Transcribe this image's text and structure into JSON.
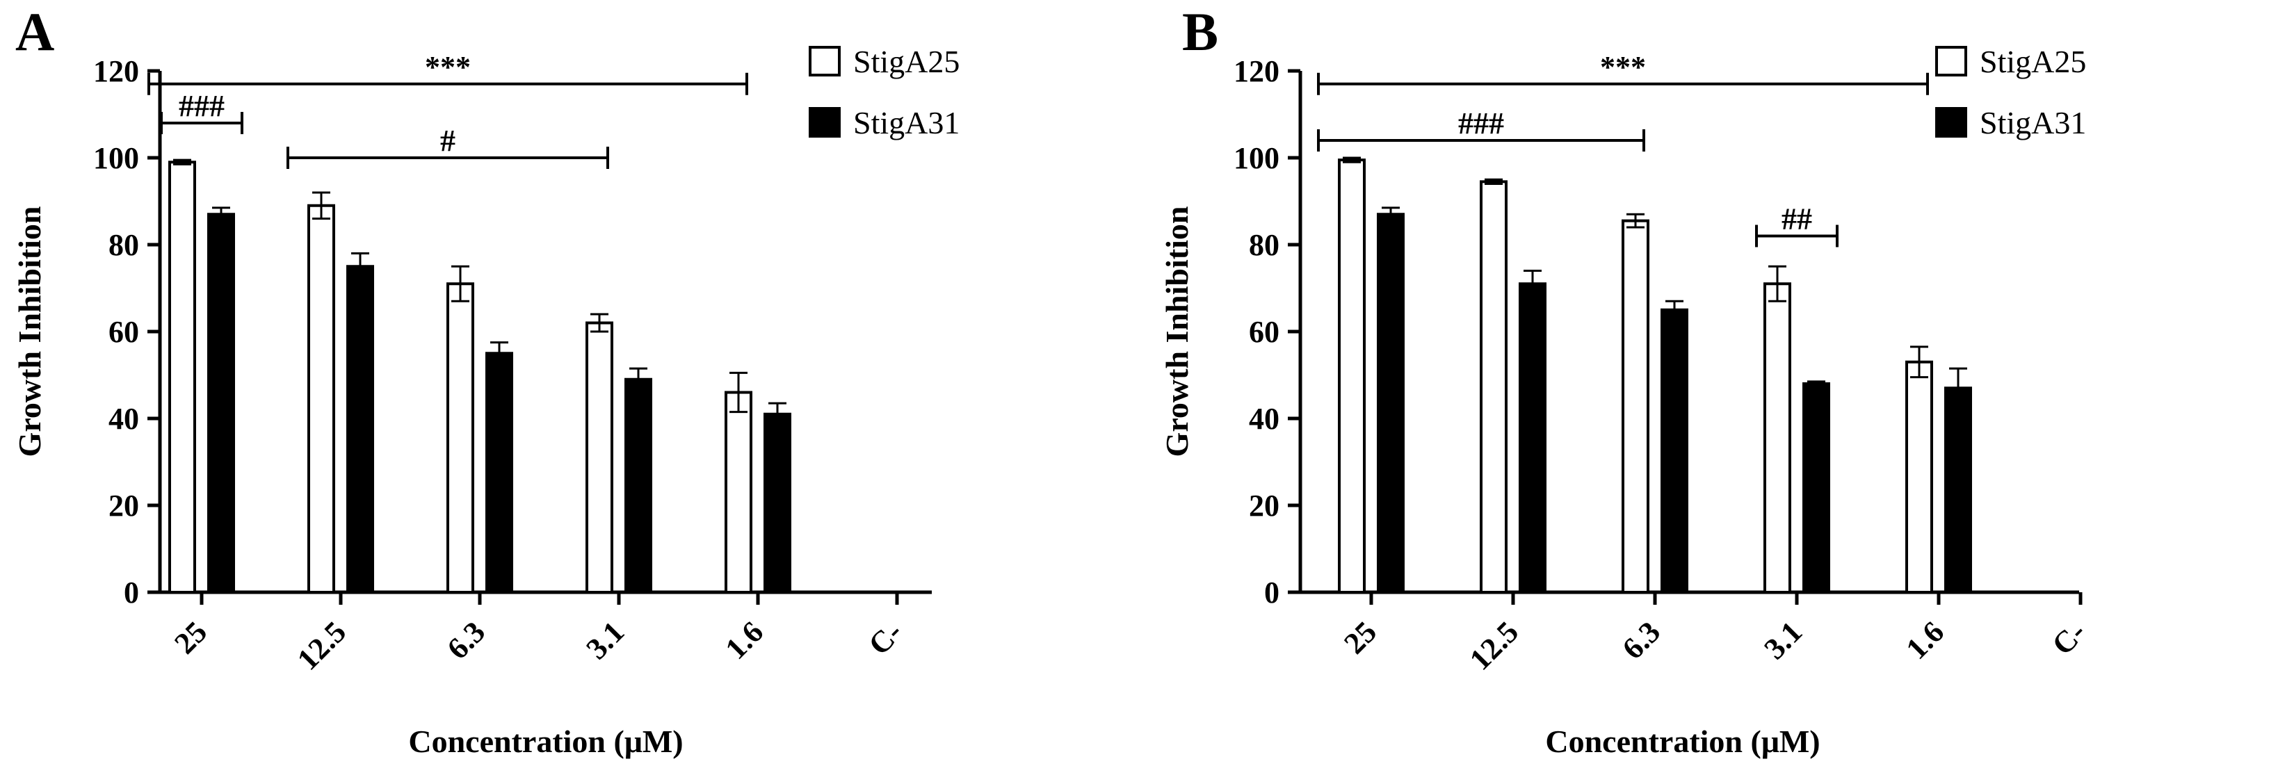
{
  "chart_data": [
    {
      "type": "bar",
      "panel": "A",
      "categories": [
        "25",
        "12.5",
        "6.3",
        "3.1",
        "1.6",
        "C-"
      ],
      "series": [
        {
          "name": "StigA25",
          "values": [
            99,
            89,
            71,
            62,
            46,
            0
          ],
          "errors": [
            0.5,
            3,
            4,
            2,
            4.5,
            0
          ],
          "color": "#ffffff"
        },
        {
          "name": "StigA31",
          "values": [
            87,
            75,
            55,
            49,
            41,
            0
          ],
          "errors": [
            1.5,
            3,
            2.5,
            2.5,
            2.5,
            0
          ],
          "color": "#000000"
        }
      ],
      "xlabel": "Concentration (μM)",
      "ylabel": "Growth Inhibition",
      "ylim": [
        0,
        120
      ],
      "yticks": [
        0,
        20,
        40,
        60,
        80,
        100,
        120
      ],
      "legend": "top-right",
      "annotations": [
        {
          "text": "***",
          "from": "25",
          "to": "1.6",
          "y": 117
        },
        {
          "text": "###",
          "from": "25",
          "to": "25",
          "y": 108
        },
        {
          "text": "#",
          "from": "12.5",
          "to": "3.1",
          "y": 100
        }
      ]
    },
    {
      "type": "bar",
      "panel": "B",
      "categories": [
        "25",
        "12.5",
        "6.3",
        "3.1",
        "1.6",
        "C-"
      ],
      "series": [
        {
          "name": "StigA25",
          "values": [
            99.5,
            94.5,
            85.5,
            71,
            53,
            0
          ],
          "errors": [
            0.5,
            0.5,
            1.5,
            4,
            3.5,
            0
          ],
          "color": "#ffffff"
        },
        {
          "name": "StigA31",
          "values": [
            87,
            71,
            65,
            48,
            47,
            0
          ],
          "errors": [
            1.5,
            3,
            2,
            0.5,
            4.5,
            0
          ],
          "color": "#000000"
        }
      ],
      "xlabel": "Concentration (μM)",
      "ylabel": "Growth Inhibition",
      "ylim": [
        0,
        120
      ],
      "yticks": [
        0,
        20,
        40,
        60,
        80,
        100,
        120
      ],
      "legend": "top-right",
      "annotations": [
        {
          "text": "***",
          "from": "25",
          "to": "1.6",
          "y": 117
        },
        {
          "text": "###",
          "from": "25",
          "to": "6.3",
          "y": 104
        },
        {
          "text": "##",
          "from": "3.1",
          "to": "3.1",
          "y": 82
        }
      ]
    }
  ]
}
